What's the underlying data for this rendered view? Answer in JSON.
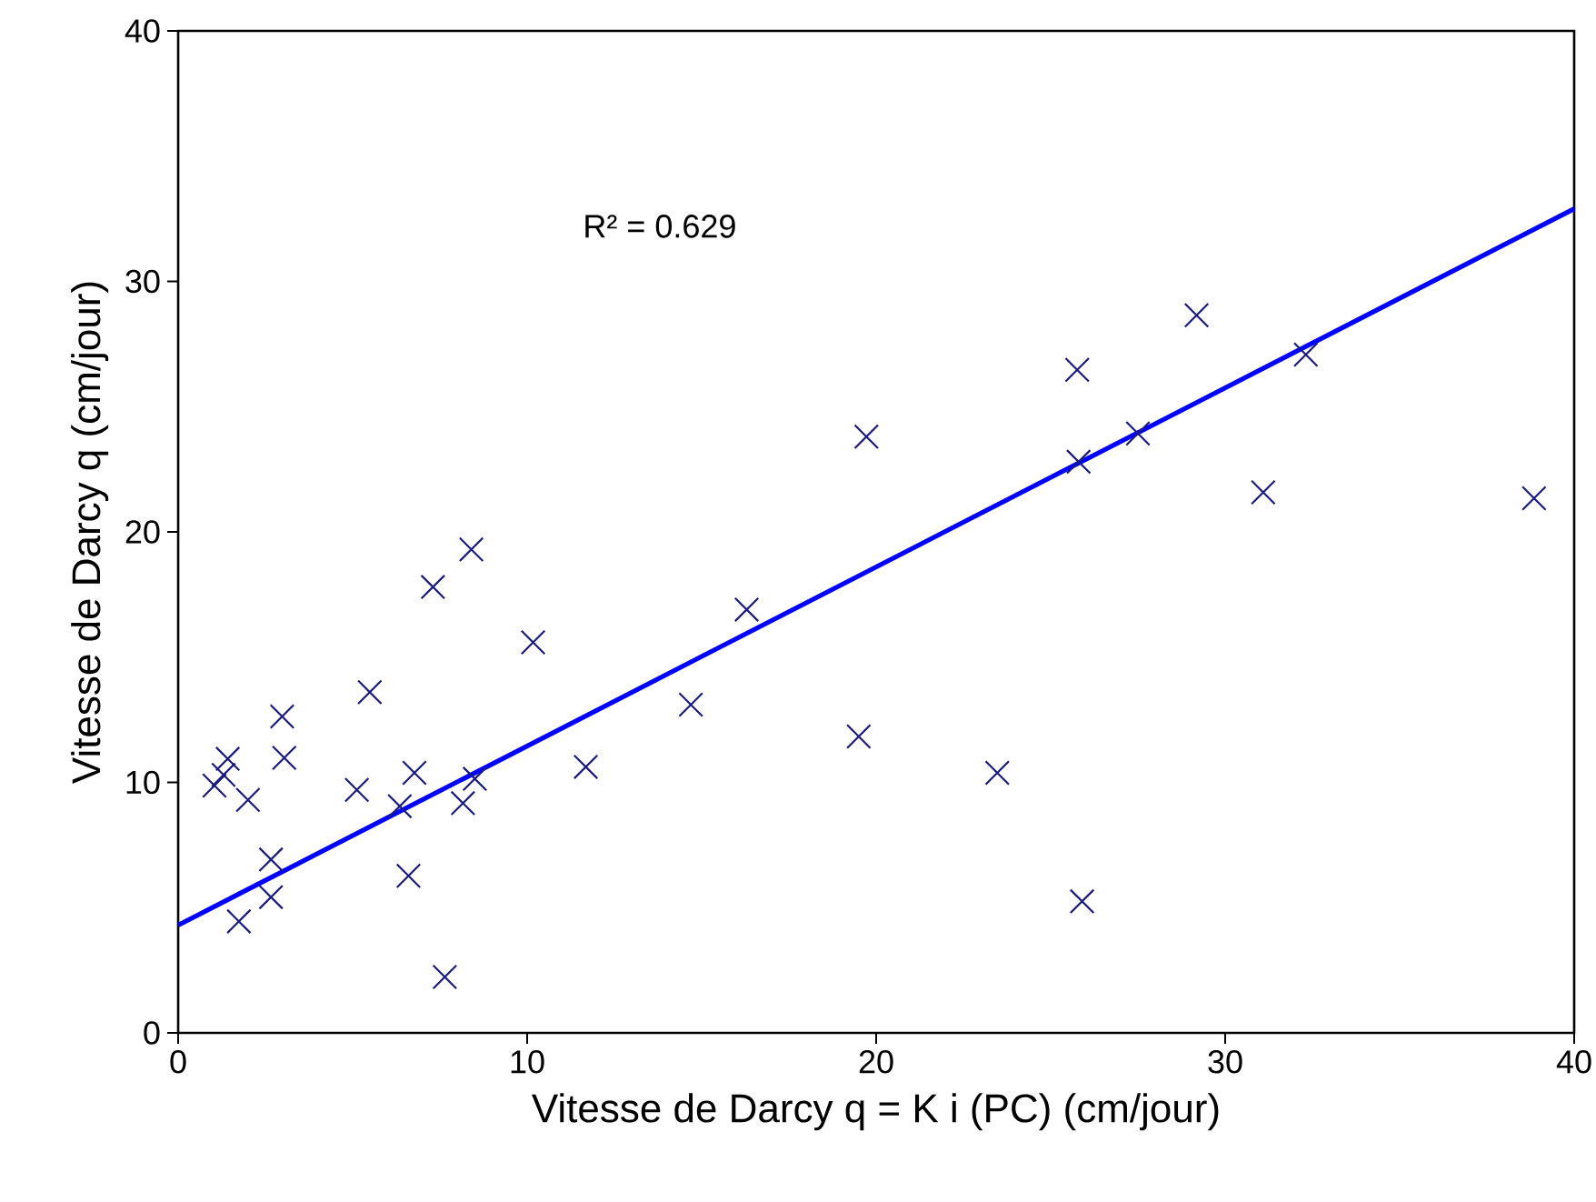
{
  "chart_data": {
    "type": "scatter",
    "xlabel": "Vitesse de Darcy q = K i (PC) (cm/jour)",
    "ylabel": "Vitesse de Darcy q (cm/jour)",
    "annotations": [
      "R² = 0.629"
    ],
    "xlim": [
      0,
      40
    ],
    "ylim": [
      0,
      40
    ],
    "xticks": [
      0,
      10,
      20,
      30,
      40
    ],
    "yticks": [
      0,
      10,
      20,
      30,
      40
    ],
    "grid": false,
    "series": [
      {
        "marker": "cross",
        "color": "#1a1a80",
        "x": [
          1.42,
          1.04,
          1.3,
          2.0,
          2.98,
          3.04,
          2.66,
          2.66,
          1.74,
          5.49,
          5.12,
          6.35,
          6.77,
          6.6,
          7.64,
          10.17,
          8.16,
          8.5,
          7.3,
          8.4,
          25.76,
          19.72,
          25.8,
          16.29,
          14.69,
          11.68,
          19.5,
          23.47,
          25.9,
          29.18,
          32.31,
          27.5,
          31.09,
          38.85
        ],
        "values": [
          10.94,
          9.87,
          10.3,
          9.3,
          12.63,
          10.98,
          6.92,
          5.42,
          4.45,
          13.6,
          9.7,
          9.05,
          10.38,
          6.27,
          2.23,
          15.59,
          9.17,
          10.14,
          17.8,
          19.3,
          26.47,
          23.8,
          22.8,
          16.9,
          13.1,
          10.62,
          11.83,
          10.38,
          5.25,
          28.65,
          27.08,
          23.93,
          21.58,
          21.34
        ]
      },
      {
        "type": "line",
        "marker": "none",
        "line_style": "solid",
        "color": "#0000ff",
        "x": [
          0,
          40
        ],
        "values": [
          4.3,
          32.9
        ]
      }
    ]
  }
}
